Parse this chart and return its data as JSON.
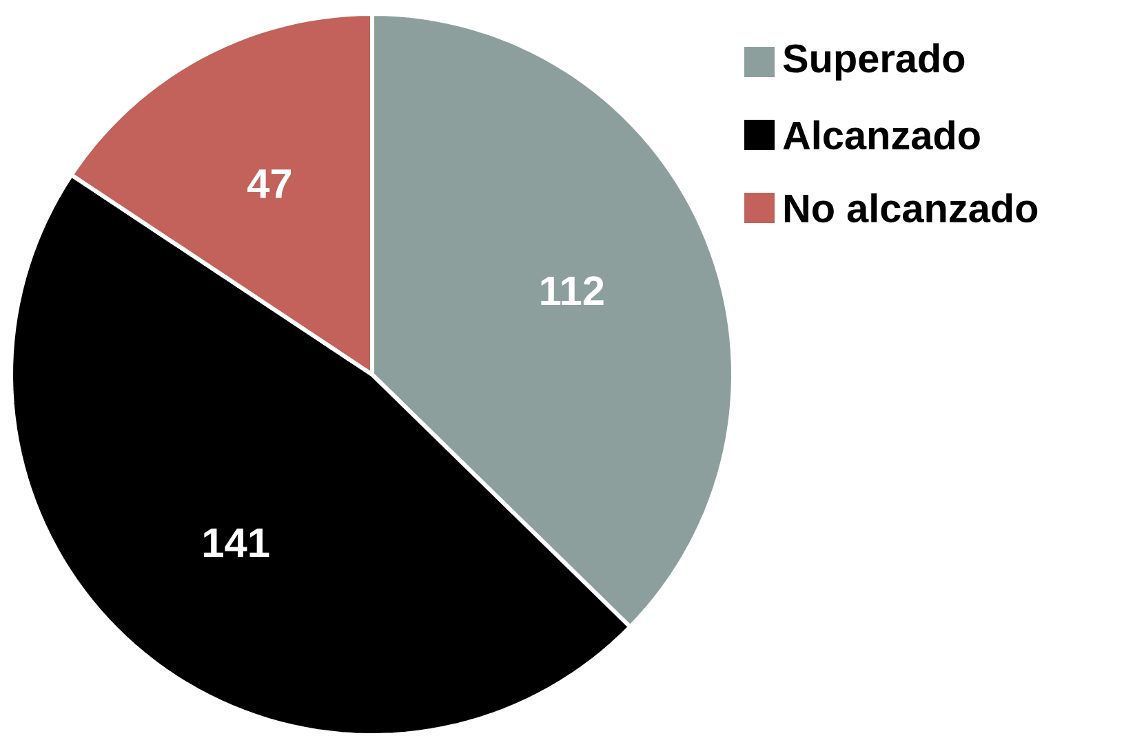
{
  "chart_data": {
    "type": "pie",
    "categories": [
      "Superado",
      "Alcanzado",
      "No alcanzado"
    ],
    "values": [
      112,
      141,
      47
    ],
    "colors": [
      "#8c9f9d",
      "#000000",
      "#c2625b"
    ],
    "data_labels": true,
    "legend": "top right"
  }
}
